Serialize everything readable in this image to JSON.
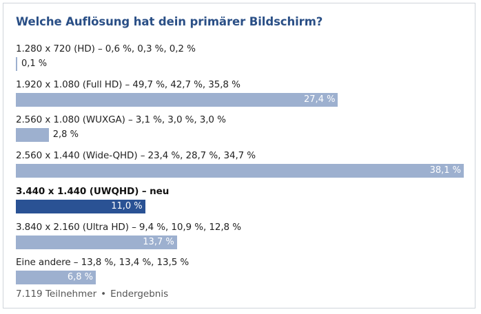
{
  "poll": {
    "title": "Welche Auflösung hat dein primärer Bildschirm?",
    "footer": {
      "participants": "7.119 Teilnehmer",
      "separator": "•",
      "status": "Endergebnis"
    }
  },
  "chart_data": {
    "type": "bar",
    "orientation": "horizontal",
    "title": "Welche Auflösung hat dein primärer Bildschirm?",
    "xlim": [
      0,
      38.1
    ],
    "categories": [
      "1.280 x 720 (HD) – 0,6 %, 0,3 %, 0,2 %",
      "1.920 x 1.080 (Full HD) – 49,7 %, 42,7 %, 35,8 %",
      "2.560 x 1.080 (WUXGA) – 3,1 %, 3,0 %, 3,0 %",
      "2.560 x 1.440 (Wide-QHD) – 23,4 %, 28,7 %, 34,7 %",
      "3.440 x 1.440 (UWQHD) – neu",
      "3.840 x 2.160 (Ultra HD) – 9,4 %, 10,9 %, 12,8 %",
      "Eine andere – 13,8 %, 13,4 %, 13,5 %"
    ],
    "values": [
      0.1,
      27.4,
      2.8,
      38.1,
      11.0,
      13.7,
      6.8
    ],
    "value_labels": [
      "0,1 %",
      "27,4 %",
      "2,8 %",
      "38,1 %",
      "11,0 %",
      "13,7 %",
      "6,8 %"
    ],
    "highlighted": [
      false,
      false,
      false,
      false,
      true,
      false,
      false
    ],
    "colors": {
      "bar": "#9db0cf",
      "highlight": "#2a5294",
      "title": "#2a4f86"
    }
  }
}
